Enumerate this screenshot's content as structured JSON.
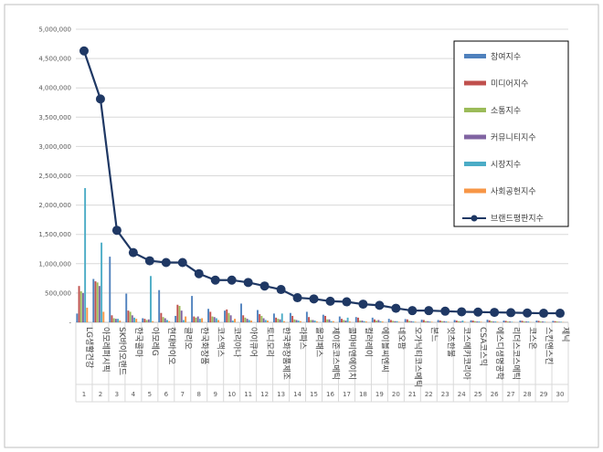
{
  "chart_data": {
    "type": "bar",
    "title": "",
    "xlabel": "",
    "ylabel": "",
    "ylim": [
      0,
      5000000
    ],
    "yticks": [
      0,
      500000,
      1000000,
      1500000,
      2000000,
      2500000,
      3000000,
      3500000,
      4000000,
      4500000,
      5000000
    ],
    "ytick_labels": [
      "-",
      "500,000",
      "1,000,000",
      "1,500,000",
      "2,000,000",
      "2,500,000",
      "3,000,000",
      "3,500,000",
      "4,000,000",
      "4,500,000",
      "5,000,000"
    ],
    "legend_position": "top-right",
    "categories": [
      "LG생활건강",
      "아모레퍼시픽",
      "SK바이오랜드",
      "한국콜마",
      "아모레G",
      "현대바이오",
      "클리오",
      "한국화장품",
      "코스맥스",
      "코리아나",
      "아이큐어",
      "토니모리",
      "한국화장품제조",
      "라파스",
      "올리패스",
      "제이준코스메틱",
      "콜마비앤에이치",
      "컬러레이",
      "에이블씨엔씨",
      "네오팜",
      "오가닉티코스메틱",
      "본느",
      "잇츠한불",
      "코스메카코리아",
      "CSA코스믹",
      "에스디생명공학",
      "리더스코스메틱",
      "코스온",
      "스킨앤스킨",
      "제닉"
    ],
    "ranks": [
      "1",
      "2",
      "3",
      "4",
      "5",
      "6",
      "7",
      "8",
      "9",
      "10",
      "11",
      "12",
      "13",
      "14",
      "15",
      "16",
      "17",
      "18",
      "19",
      "20",
      "21",
      "22",
      "23",
      "24",
      "25",
      "26",
      "27",
      "28",
      "29",
      "30"
    ],
    "series": [
      {
        "name": "참여지수",
        "kind": "bar",
        "color": "#4f81bd",
        "values": [
          150000,
          740000,
          1120000,
          490000,
          70000,
          550000,
          110000,
          450000,
          230000,
          200000,
          320000,
          210000,
          150000,
          160000,
          180000,
          130000,
          100000,
          90000,
          80000,
          60000,
          55000,
          45000,
          40000,
          40000,
          35000,
          45000,
          30000,
          30000,
          30000,
          25000
        ]
      },
      {
        "name": "미디어지수",
        "kind": "bar",
        "color": "#c0504d",
        "values": [
          620000,
          700000,
          120000,
          200000,
          60000,
          160000,
          300000,
          100000,
          180000,
          220000,
          120000,
          140000,
          80000,
          110000,
          90000,
          110000,
          60000,
          80000,
          50000,
          40000,
          50000,
          40000,
          30000,
          30000,
          30000,
          35000,
          25000,
          25000,
          25000,
          20000
        ]
      },
      {
        "name": "소통지수",
        "kind": "bar",
        "color": "#9bbb59",
        "values": [
          530000,
          680000,
          70000,
          180000,
          40000,
          90000,
          280000,
          80000,
          100000,
          160000,
          80000,
          110000,
          60000,
          50000,
          40000,
          50000,
          40000,
          30000,
          30000,
          25000,
          25000,
          20000,
          20000,
          20000,
          20000,
          20000,
          15000,
          15000,
          15000,
          15000
        ]
      },
      {
        "name": "커뮤니티지수",
        "kind": "bar",
        "color": "#8064a2",
        "values": [
          500000,
          620000,
          60000,
          120000,
          50000,
          70000,
          200000,
          100000,
          90000,
          120000,
          60000,
          70000,
          50000,
          40000,
          40000,
          50000,
          30000,
          30000,
          40000,
          20000,
          20000,
          20000,
          20000,
          15000,
          15000,
          15000,
          15000,
          15000,
          15000,
          10000
        ]
      },
      {
        "name": "시장지수",
        "kind": "bar",
        "color": "#4bacc6",
        "values": [
          2290000,
          1360000,
          60000,
          80000,
          790000,
          40000,
          40000,
          60000,
          70000,
          30000,
          40000,
          40000,
          150000,
          30000,
          30000,
          20000,
          80000,
          20000,
          20000,
          20000,
          15000,
          15000,
          15000,
          30000,
          15000,
          15000,
          10000,
          15000,
          10000,
          10000
        ]
      },
      {
        "name": "사회공헌지수",
        "kind": "bar",
        "color": "#f79646",
        "values": [
          250000,
          180000,
          30000,
          60000,
          20000,
          20000,
          100000,
          70000,
          40000,
          60000,
          30000,
          30000,
          20000,
          20000,
          15000,
          20000,
          15000,
          15000,
          15000,
          10000,
          10000,
          10000,
          10000,
          10000,
          10000,
          10000,
          5000,
          5000,
          5000,
          5000
        ]
      },
      {
        "name": "브랜드평판지수",
        "kind": "line",
        "color": "#1f3864",
        "values": [
          4630000,
          3810000,
          1570000,
          1190000,
          1050000,
          1020000,
          1020000,
          830000,
          720000,
          720000,
          680000,
          620000,
          560000,
          420000,
          400000,
          360000,
          350000,
          310000,
          290000,
          240000,
          200000,
          200000,
          190000,
          180000,
          175000,
          170000,
          165000,
          160000,
          155000,
          155000
        ]
      }
    ]
  }
}
